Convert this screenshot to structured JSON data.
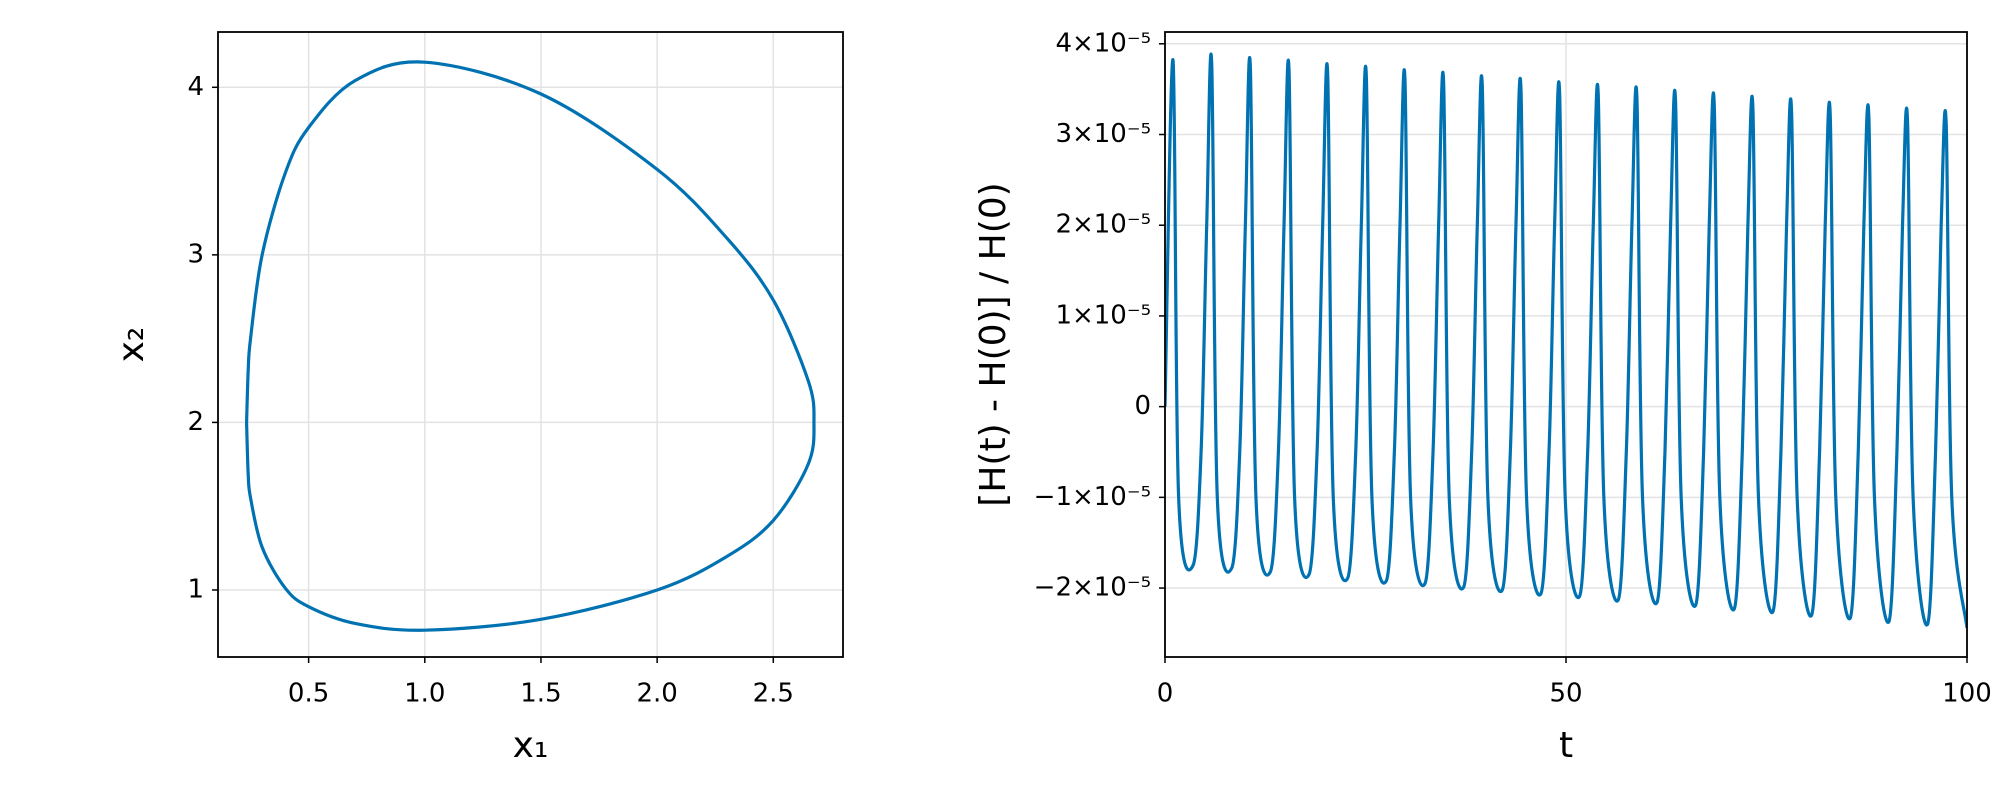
{
  "chart_data": [
    {
      "type": "line",
      "x_label": "x₁",
      "y_label": "x₂",
      "color": "#0072b2",
      "grid": true,
      "x": [
        0.233,
        0.24,
        0.25,
        0.3,
        0.4,
        0.5,
        0.7,
        1,
        1.5,
        2,
        2.3,
        2.5,
        2.65,
        2.675,
        2.65,
        2.5,
        2.3,
        2,
        1.5,
        1,
        0.7,
        0.5,
        0.4,
        0.3,
        0.25,
        0.24,
        0.233
      ],
      "values": [
        2,
        2.31,
        2.5,
        3.0,
        3.49,
        3.76,
        4.04,
        4.15,
        3.96,
        3.51,
        3.1,
        2.73,
        2.25,
        2,
        1.75,
        1.415,
        1.2,
        1.0,
        0.825,
        0.76,
        0.8,
        0.9,
        1.01,
        1.255,
        1.55,
        1.69,
        2
      ],
      "xlim": [
        0.11,
        2.8
      ],
      "ylim": [
        0.6,
        4.33
      ],
      "xticks": [
        0.5,
        {
          "value": 1,
          "label": "1.0"
        },
        1.5,
        {
          "value": 2,
          "label": "2.0"
        },
        2.5
      ],
      "yticks": [
        1,
        2,
        3,
        4
      ]
    },
    {
      "type": "line",
      "x_label": "t",
      "y_label": "[H(t) - H(0)] / H(0)",
      "color": "#0072b2",
      "grid": true,
      "x": [
        0,
        1.0,
        1.7,
        3.5,
        4.5,
        5.2,
        5.82,
        6.52,
        8.32,
        9.32,
        10.02,
        10.64,
        11.34,
        13.14,
        14.14,
        14.84,
        15.46,
        16.16,
        17.96,
        18.96,
        19.66,
        20.28,
        20.98,
        22.78,
        23.78,
        24.48,
        25.1,
        25.8,
        27.6,
        28.6,
        29.3,
        29.92,
        30.62,
        32.42,
        33.42,
        34.12,
        34.74,
        35.44,
        37.24,
        38.24,
        38.94,
        39.56,
        40.26,
        42.06,
        43.06,
        43.76,
        44.38,
        45.08,
        46.88,
        47.88,
        48.58,
        49.2,
        49.9,
        51.7,
        52.7,
        53.4,
        54.02,
        54.72,
        56.52,
        57.52,
        58.22,
        58.84,
        59.54,
        61.34,
        62.34,
        63.04,
        63.66,
        64.36,
        66.16,
        67.16,
        67.86,
        68.48,
        69.18,
        70.98,
        71.98,
        72.68,
        73.3,
        74.0,
        75.8,
        76.8,
        77.5,
        78.12,
        78.82,
        80.62,
        81.62,
        82.32,
        82.94,
        83.64,
        85.44,
        86.44,
        87.14,
        87.76,
        88.46,
        90.26,
        91.26,
        91.96,
        92.58,
        93.28,
        95.08,
        96.08,
        96.78,
        97.4,
        98.1,
        100
      ],
      "values": [
        0,
        3.82e-05,
        -1e-05,
        -1.75e-05,
        -5e-06,
        2e-05,
        3.79e-05,
        -1e-05,
        -1.78e-05,
        -5e-06,
        2e-05,
        3.75e-05,
        -1e-05,
        -1.82e-05,
        -5e-06,
        2e-05,
        3.72e-05,
        -1e-05,
        -1.85e-05,
        -5e-06,
        2e-05,
        3.68e-05,
        -1e-05,
        -1.89e-05,
        -5e-06,
        2e-05,
        3.65e-05,
        -1e-05,
        -1.92e-05,
        -5e-06,
        2e-05,
        3.61e-05,
        -1e-05,
        -1.95e-05,
        -5e-06,
        2e-05,
        3.58e-05,
        -1e-05,
        -1.99e-05,
        -5e-06,
        2e-05,
        3.54e-05,
        -1e-05,
        -2.02e-05,
        -5e-06,
        2e-05,
        3.51e-05,
        -1e-05,
        -2.06e-05,
        -5e-06,
        2e-05,
        3.47e-05,
        -1e-05,
        -2.09e-05,
        -5e-06,
        2e-05,
        3.44e-05,
        -1e-05,
        -2.13e-05,
        -5e-06,
        2e-05,
        3.41e-05,
        -1e-05,
        -2.16e-05,
        -5e-06,
        2e-05,
        3.37e-05,
        -1e-05,
        -2.19e-05,
        -5e-06,
        2e-05,
        3.34e-05,
        -1e-05,
        -2.23e-05,
        -5e-06,
        2e-05,
        3.3e-05,
        -1e-05,
        -2.26e-05,
        -5e-06,
        2e-05,
        3.27e-05,
        -1e-05,
        -2.3e-05,
        -5e-06,
        2e-05,
        3.23e-05,
        -1e-05,
        -2.33e-05,
        -5e-06,
        2e-05,
        3.2e-05,
        -1e-05,
        -2.37e-05,
        -5e-06,
        2e-05,
        3.16e-05,
        -1e-05,
        -2.4e-05,
        -5e-06,
        2e-05,
        3.13e-05,
        -1e-05,
        -2.44e-05
      ],
      "xlim": [
        0,
        100
      ],
      "ylim": [
        -2.76e-05,
        4.13e-05
      ],
      "xticks": [
        0,
        50,
        100
      ],
      "yticks": [
        {
          "value": -2e-05,
          "label": "−2×10⁻⁵"
        },
        {
          "value": -1e-05,
          "label": "−1×10⁻⁵"
        },
        0,
        {
          "value": 1e-05,
          "label": "1×10⁻⁵"
        },
        {
          "value": 2e-05,
          "label": "2×10⁻⁵"
        },
        {
          "value": 3e-05,
          "label": "3×10⁻⁵"
        },
        {
          "value": 4e-05,
          "label": "4×10⁻⁵"
        }
      ]
    }
  ]
}
